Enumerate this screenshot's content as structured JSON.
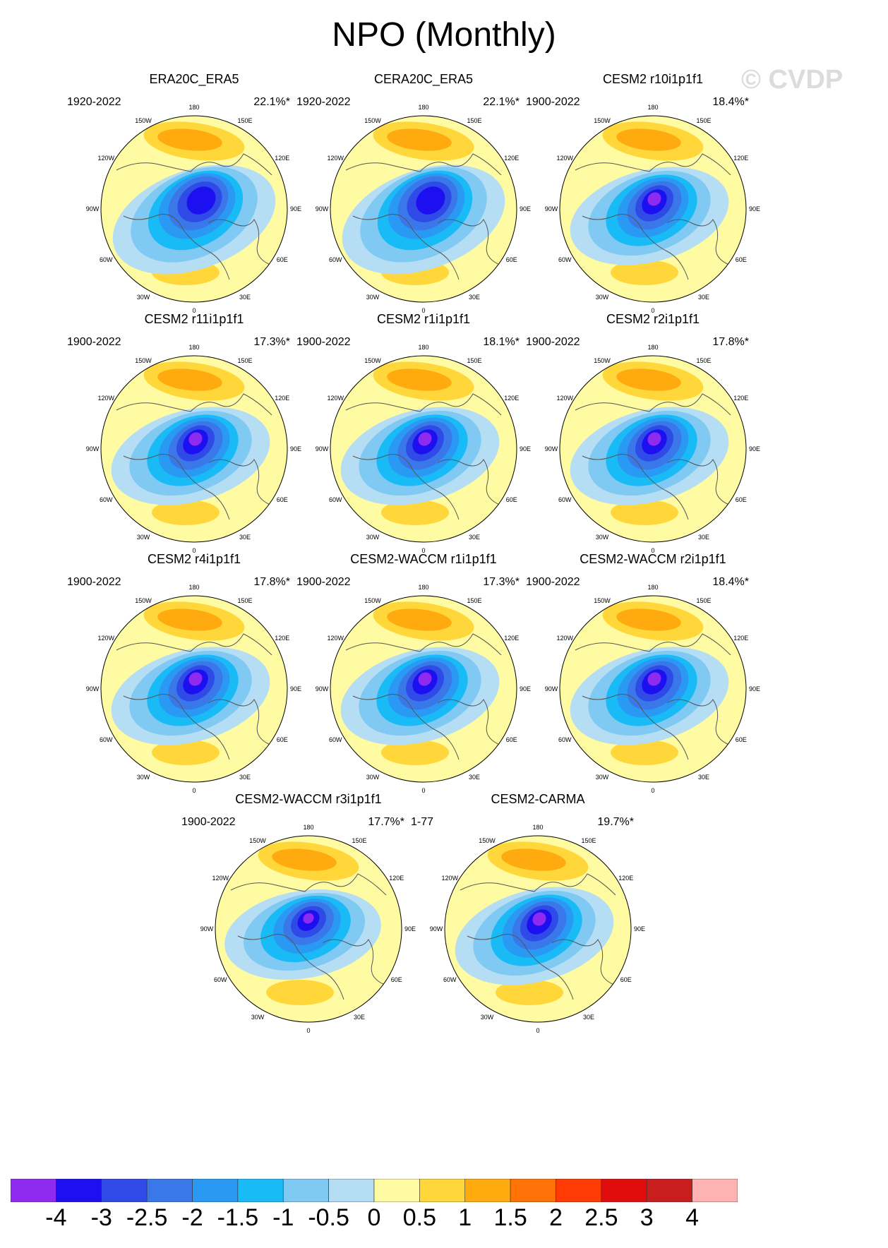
{
  "title": "NPO (Monthly)",
  "watermark": "© CVDP",
  "ring_labels": [
    "180",
    "150E",
    "120E",
    "90E",
    "60E",
    "30E",
    "0",
    "30W",
    "60W",
    "90W",
    "120W",
    "150W"
  ],
  "panels": [
    {
      "title": "ERA20C_ERA5",
      "years": "1920-2022",
      "pct": "22.1%*",
      "style": 0
    },
    {
      "title": "CERA20C_ERA5",
      "years": "1920-2022",
      "pct": "22.1%*",
      "style": 0
    },
    {
      "title": "CESM2 r10i1p1f1",
      "years": "1900-2022",
      "pct": "18.4%*",
      "style": 1
    },
    {
      "title": "CESM2 r11i1p1f1",
      "years": "1900-2022",
      "pct": "17.3%*",
      "style": 1
    },
    {
      "title": "CESM2 r1i1p1f1",
      "years": "1900-2022",
      "pct": "18.1%*",
      "style": 1
    },
    {
      "title": "CESM2 r2i1p1f1",
      "years": "1900-2022",
      "pct": "17.8%*",
      "style": 1
    },
    {
      "title": "CESM2 r4i1p1f1",
      "years": "1900-2022",
      "pct": "17.8%*",
      "style": 1
    },
    {
      "title": "CESM2-WACCM r1i1p1f1",
      "years": "1900-2022",
      "pct": "17.3%*",
      "style": 1
    },
    {
      "title": "CESM2-WACCM r2i1p1f1",
      "years": "1900-2022",
      "pct": "18.4%*",
      "style": 1
    },
    {
      "title": "CESM2-WACCM r3i1p1f1",
      "years": "1900-2022",
      "pct": "17.7%*",
      "style": 2
    },
    {
      "title": "CESM2-CARMA",
      "years": "1-77",
      "pct": "19.7%*",
      "style": 1
    }
  ],
  "colorbar": {
    "ticks": [
      "-4",
      "-3",
      "-2.5",
      "-2",
      "-1.5",
      "-1",
      "-0.5",
      "0",
      "0.5",
      "1",
      "1.5",
      "2",
      "2.5",
      "3",
      "4"
    ],
    "colors": [
      "#8f2aef",
      "#1c0ff0",
      "#2f4ae6",
      "#3a78ea",
      "#2a99f4",
      "#19bbf6",
      "#7fc9f2",
      "#b5def4",
      "#fffba2",
      "#ffd73a",
      "#ffab10",
      "#ff7208",
      "#ff3a04",
      "#e10c0c",
      "#c81e1e",
      "#ffb2b2"
    ]
  }
}
